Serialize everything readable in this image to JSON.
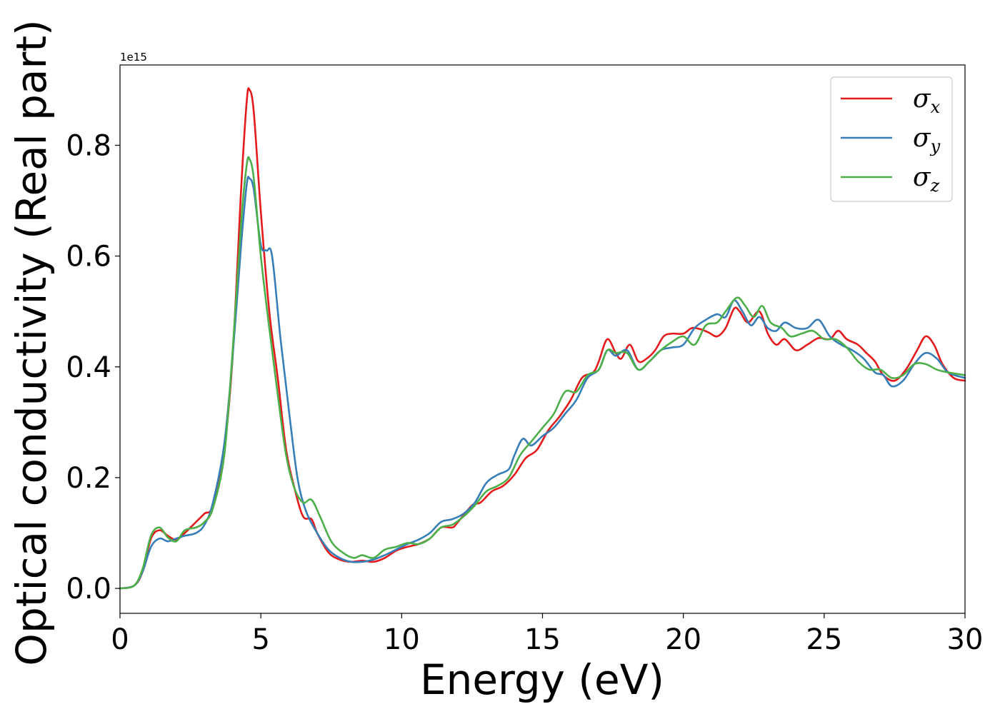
{
  "chart_data": {
    "type": "line",
    "title": "",
    "xlabel": "Energy (eV)",
    "ylabel": "Optical conductivity (Real part)",
    "y_offset_label": "1e15",
    "xlim": [
      0,
      30
    ],
    "ylim": [
      -0.045,
      0.945
    ],
    "x_ticks": [
      0,
      5,
      10,
      15,
      20,
      25,
      30
    ],
    "x_tick_labels": [
      "0",
      "5",
      "10",
      "15",
      "20",
      "25",
      "30"
    ],
    "y_ticks": [
      0.0,
      0.2,
      0.4,
      0.6,
      0.8
    ],
    "y_tick_labels": [
      "0.0",
      "0.2",
      "0.4",
      "0.6",
      "0.8"
    ],
    "grid": false,
    "legend_position": "top-right",
    "series": [
      {
        "name": "σx",
        "symbol": "σ",
        "subscript": "x",
        "color": "#e41a1c",
        "points": [
          [
            0,
            0
          ],
          [
            0.5,
            0.005
          ],
          [
            0.8,
            0.03
          ],
          [
            1.1,
            0.09
          ],
          [
            1.4,
            0.105
          ],
          [
            1.7,
            0.095
          ],
          [
            2.0,
            0.088
          ],
          [
            2.3,
            0.1
          ],
          [
            2.7,
            0.12
          ],
          [
            3.0,
            0.135
          ],
          [
            3.3,
            0.15
          ],
          [
            3.7,
            0.25
          ],
          [
            4.0,
            0.42
          ],
          [
            4.3,
            0.72
          ],
          [
            4.5,
            0.88
          ],
          [
            4.6,
            0.9
          ],
          [
            4.75,
            0.86
          ],
          [
            5.0,
            0.68
          ],
          [
            5.3,
            0.5
          ],
          [
            5.6,
            0.38
          ],
          [
            5.9,
            0.25
          ],
          [
            6.2,
            0.18
          ],
          [
            6.5,
            0.13
          ],
          [
            6.8,
            0.125
          ],
          [
            7.0,
            0.1
          ],
          [
            7.4,
            0.065
          ],
          [
            7.8,
            0.052
          ],
          [
            8.2,
            0.048
          ],
          [
            8.6,
            0.05
          ],
          [
            9.0,
            0.048
          ],
          [
            9.4,
            0.055
          ],
          [
            9.8,
            0.068
          ],
          [
            10.2,
            0.075
          ],
          [
            10.6,
            0.08
          ],
          [
            11.0,
            0.09
          ],
          [
            11.4,
            0.11
          ],
          [
            11.8,
            0.11
          ],
          [
            12.0,
            0.12
          ],
          [
            12.5,
            0.15
          ],
          [
            12.8,
            0.155
          ],
          [
            13.2,
            0.175
          ],
          [
            13.6,
            0.185
          ],
          [
            14.0,
            0.205
          ],
          [
            14.4,
            0.235
          ],
          [
            14.8,
            0.25
          ],
          [
            15.2,
            0.285
          ],
          [
            15.6,
            0.31
          ],
          [
            16.0,
            0.34
          ],
          [
            16.4,
            0.38
          ],
          [
            16.8,
            0.39
          ],
          [
            17.0,
            0.41
          ],
          [
            17.3,
            0.45
          ],
          [
            17.6,
            0.425
          ],
          [
            17.8,
            0.415
          ],
          [
            18.1,
            0.44
          ],
          [
            18.4,
            0.41
          ],
          [
            18.7,
            0.415
          ],
          [
            19.0,
            0.43
          ],
          [
            19.3,
            0.455
          ],
          [
            19.6,
            0.46
          ],
          [
            20.0,
            0.46
          ],
          [
            20.3,
            0.47
          ],
          [
            20.6,
            0.468
          ],
          [
            20.9,
            0.462
          ],
          [
            21.2,
            0.455
          ],
          [
            21.5,
            0.47
          ],
          [
            21.8,
            0.505
          ],
          [
            22.0,
            0.5
          ],
          [
            22.3,
            0.48
          ],
          [
            22.7,
            0.5
          ],
          [
            23.0,
            0.46
          ],
          [
            23.3,
            0.44
          ],
          [
            23.6,
            0.45
          ],
          [
            24.0,
            0.43
          ],
          [
            24.4,
            0.44
          ],
          [
            24.8,
            0.452
          ],
          [
            25.2,
            0.45
          ],
          [
            25.5,
            0.465
          ],
          [
            25.8,
            0.45
          ],
          [
            26.2,
            0.44
          ],
          [
            26.5,
            0.425
          ],
          [
            26.8,
            0.41
          ],
          [
            27.1,
            0.385
          ],
          [
            27.5,
            0.375
          ],
          [
            27.9,
            0.395
          ],
          [
            28.3,
            0.43
          ],
          [
            28.6,
            0.455
          ],
          [
            28.9,
            0.44
          ],
          [
            29.2,
            0.405
          ],
          [
            29.6,
            0.38
          ],
          [
            30.0,
            0.375
          ]
        ]
      },
      {
        "name": "σy",
        "symbol": "σ",
        "subscript": "y",
        "color": "#377eb8",
        "points": [
          [
            0,
            0
          ],
          [
            0.5,
            0.005
          ],
          [
            0.8,
            0.03
          ],
          [
            1.1,
            0.075
          ],
          [
            1.4,
            0.09
          ],
          [
            1.7,
            0.085
          ],
          [
            2.0,
            0.09
          ],
          [
            2.3,
            0.095
          ],
          [
            2.7,
            0.1
          ],
          [
            3.0,
            0.115
          ],
          [
            3.3,
            0.155
          ],
          [
            3.7,
            0.26
          ],
          [
            4.0,
            0.42
          ],
          [
            4.3,
            0.62
          ],
          [
            4.5,
            0.73
          ],
          [
            4.6,
            0.74
          ],
          [
            4.75,
            0.72
          ],
          [
            5.0,
            0.62
          ],
          [
            5.2,
            0.61
          ],
          [
            5.4,
            0.6
          ],
          [
            5.7,
            0.45
          ],
          [
            6.0,
            0.32
          ],
          [
            6.3,
            0.2
          ],
          [
            6.6,
            0.14
          ],
          [
            7.0,
            0.1
          ],
          [
            7.4,
            0.07
          ],
          [
            7.8,
            0.055
          ],
          [
            8.2,
            0.048
          ],
          [
            8.6,
            0.048
          ],
          [
            9.0,
            0.052
          ],
          [
            9.4,
            0.06
          ],
          [
            9.8,
            0.07
          ],
          [
            10.2,
            0.08
          ],
          [
            10.6,
            0.088
          ],
          [
            11.0,
            0.1
          ],
          [
            11.4,
            0.12
          ],
          [
            11.8,
            0.125
          ],
          [
            12.2,
            0.135
          ],
          [
            12.6,
            0.155
          ],
          [
            13.0,
            0.19
          ],
          [
            13.4,
            0.205
          ],
          [
            13.8,
            0.215
          ],
          [
            14.0,
            0.24
          ],
          [
            14.3,
            0.27
          ],
          [
            14.6,
            0.258
          ],
          [
            15.0,
            0.275
          ],
          [
            15.4,
            0.29
          ],
          [
            15.8,
            0.315
          ],
          [
            16.2,
            0.34
          ],
          [
            16.6,
            0.38
          ],
          [
            17.0,
            0.395
          ],
          [
            17.3,
            0.43
          ],
          [
            17.6,
            0.42
          ],
          [
            18.0,
            0.43
          ],
          [
            18.4,
            0.395
          ],
          [
            18.8,
            0.41
          ],
          [
            19.2,
            0.43
          ],
          [
            19.6,
            0.435
          ],
          [
            20.0,
            0.44
          ],
          [
            20.4,
            0.47
          ],
          [
            20.8,
            0.485
          ],
          [
            21.2,
            0.495
          ],
          [
            21.5,
            0.49
          ],
          [
            21.8,
            0.52
          ],
          [
            22.1,
            0.5
          ],
          [
            22.4,
            0.475
          ],
          [
            22.7,
            0.49
          ],
          [
            23.0,
            0.47
          ],
          [
            23.3,
            0.465
          ],
          [
            23.6,
            0.48
          ],
          [
            24.0,
            0.47
          ],
          [
            24.4,
            0.47
          ],
          [
            24.8,
            0.485
          ],
          [
            25.2,
            0.455
          ],
          [
            25.6,
            0.44
          ],
          [
            26.0,
            0.43
          ],
          [
            26.4,
            0.415
          ],
          [
            26.8,
            0.39
          ],
          [
            27.1,
            0.385
          ],
          [
            27.4,
            0.365
          ],
          [
            27.8,
            0.375
          ],
          [
            28.2,
            0.405
          ],
          [
            28.6,
            0.425
          ],
          [
            29.0,
            0.415
          ],
          [
            29.4,
            0.39
          ],
          [
            30.0,
            0.38
          ]
        ]
      },
      {
        "name": "σz",
        "symbol": "σ",
        "subscript": "z",
        "color": "#4daf4a",
        "points": [
          [
            0,
            0
          ],
          [
            0.5,
            0.005
          ],
          [
            0.8,
            0.035
          ],
          [
            1.1,
            0.095
          ],
          [
            1.4,
            0.11
          ],
          [
            1.7,
            0.092
          ],
          [
            2.0,
            0.085
          ],
          [
            2.3,
            0.105
          ],
          [
            2.7,
            0.11
          ],
          [
            3.0,
            0.12
          ],
          [
            3.3,
            0.145
          ],
          [
            3.7,
            0.24
          ],
          [
            4.0,
            0.43
          ],
          [
            4.3,
            0.66
          ],
          [
            4.5,
            0.765
          ],
          [
            4.6,
            0.775
          ],
          [
            4.75,
            0.74
          ],
          [
            5.0,
            0.6
          ],
          [
            5.3,
            0.47
          ],
          [
            5.6,
            0.35
          ],
          [
            5.9,
            0.24
          ],
          [
            6.2,
            0.18
          ],
          [
            6.5,
            0.155
          ],
          [
            6.8,
            0.16
          ],
          [
            7.1,
            0.13
          ],
          [
            7.5,
            0.085
          ],
          [
            7.9,
            0.065
          ],
          [
            8.3,
            0.055
          ],
          [
            8.6,
            0.06
          ],
          [
            9.0,
            0.055
          ],
          [
            9.4,
            0.07
          ],
          [
            9.8,
            0.075
          ],
          [
            10.2,
            0.082
          ],
          [
            10.6,
            0.08
          ],
          [
            11.0,
            0.09
          ],
          [
            11.4,
            0.11
          ],
          [
            11.8,
            0.115
          ],
          [
            12.2,
            0.13
          ],
          [
            12.6,
            0.15
          ],
          [
            13.0,
            0.175
          ],
          [
            13.4,
            0.185
          ],
          [
            13.8,
            0.2
          ],
          [
            14.2,
            0.24
          ],
          [
            14.6,
            0.265
          ],
          [
            15.0,
            0.29
          ],
          [
            15.4,
            0.315
          ],
          [
            15.8,
            0.355
          ],
          [
            16.2,
            0.355
          ],
          [
            16.6,
            0.385
          ],
          [
            17.0,
            0.395
          ],
          [
            17.3,
            0.43
          ],
          [
            17.6,
            0.425
          ],
          [
            18.0,
            0.425
          ],
          [
            18.4,
            0.395
          ],
          [
            18.8,
            0.41
          ],
          [
            19.2,
            0.43
          ],
          [
            19.6,
            0.445
          ],
          [
            20.0,
            0.455
          ],
          [
            20.4,
            0.44
          ],
          [
            20.8,
            0.475
          ],
          [
            21.2,
            0.48
          ],
          [
            21.5,
            0.5
          ],
          [
            21.9,
            0.525
          ],
          [
            22.2,
            0.51
          ],
          [
            22.5,
            0.49
          ],
          [
            22.8,
            0.51
          ],
          [
            23.1,
            0.48
          ],
          [
            23.5,
            0.47
          ],
          [
            23.8,
            0.455
          ],
          [
            24.2,
            0.46
          ],
          [
            24.6,
            0.465
          ],
          [
            25.0,
            0.45
          ],
          [
            25.4,
            0.45
          ],
          [
            25.8,
            0.435
          ],
          [
            26.2,
            0.41
          ],
          [
            26.6,
            0.395
          ],
          [
            27.0,
            0.395
          ],
          [
            27.4,
            0.38
          ],
          [
            27.8,
            0.385
          ],
          [
            28.2,
            0.405
          ],
          [
            28.6,
            0.405
          ],
          [
            29.0,
            0.395
          ],
          [
            29.4,
            0.39
          ],
          [
            30.0,
            0.385
          ]
        ]
      }
    ]
  }
}
